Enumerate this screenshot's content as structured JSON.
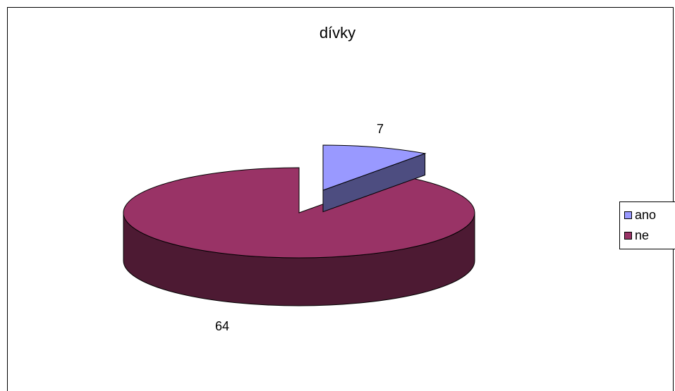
{
  "chart_data": {
    "type": "pie",
    "title": "dívky",
    "categories": [
      "ano",
      "ne"
    ],
    "values": [
      7,
      64
    ],
    "colors": [
      "#9999FF",
      "#993366"
    ],
    "side_colors": [
      "#4D4D80",
      "#4D1A33"
    ],
    "legend_placement": "right"
  }
}
